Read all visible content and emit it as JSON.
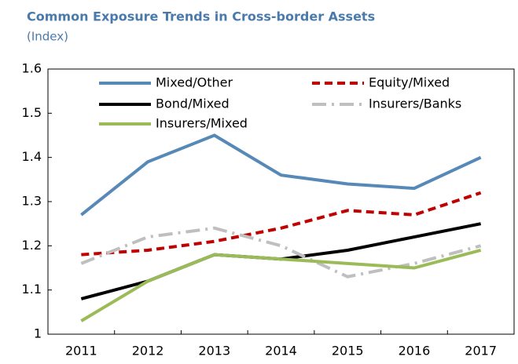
{
  "chart_data": {
    "type": "line",
    "title": "Common Exposure Trends in Cross-border Assets",
    "subtitle": "(Index)",
    "categories": [
      "2011",
      "2012",
      "2013",
      "2014",
      "2015",
      "2016",
      "2017"
    ],
    "series": [
      {
        "name": "Mixed/Other",
        "color": "#5689b8",
        "style": "solid",
        "values": [
          1.27,
          1.39,
          1.45,
          1.36,
          1.34,
          1.33,
          1.4
        ]
      },
      {
        "name": "Equity/Mixed",
        "color": "#c00000",
        "style": "dashed",
        "values": [
          1.18,
          1.19,
          1.21,
          1.24,
          1.28,
          1.27,
          1.32
        ]
      },
      {
        "name": "Bond/Mixed",
        "color": "#000000",
        "style": "solid",
        "values": [
          1.08,
          1.12,
          1.18,
          1.17,
          1.19,
          1.22,
          1.25
        ]
      },
      {
        "name": "Insurers/Banks",
        "color": "#bfbfbf",
        "style": "dash-dot",
        "values": [
          1.16,
          1.22,
          1.24,
          1.2,
          1.13,
          1.16,
          1.2
        ]
      },
      {
        "name": "Insurers/Mixed",
        "color": "#9bbb59",
        "style": "solid",
        "values": [
          1.03,
          1.12,
          1.18,
          1.17,
          1.16,
          1.15,
          1.19
        ]
      }
    ],
    "ylim": [
      1,
      1.6
    ],
    "yticks": [
      1,
      1.1,
      1.2,
      1.3,
      1.4,
      1.5,
      1.6
    ],
    "grid": false
  }
}
